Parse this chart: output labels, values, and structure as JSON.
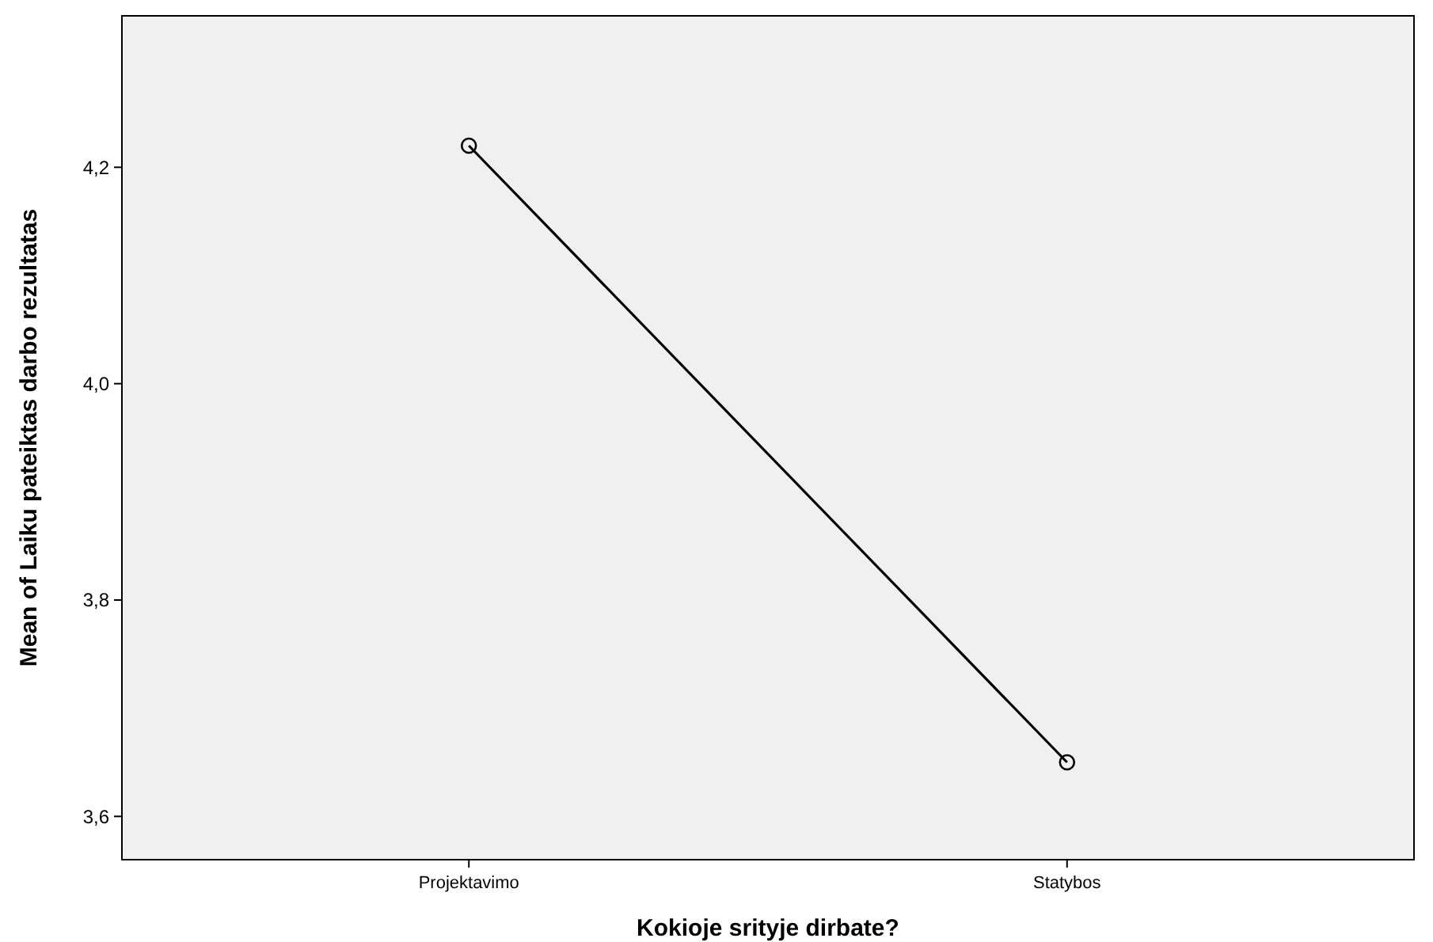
{
  "chart_data": {
    "type": "line",
    "xlabel": "Kokioje srityje dirbate?",
    "ylabel": "Mean of Laiku pateiktas darbo rezultatas",
    "categories": [
      "Projektavimo",
      "Statybos"
    ],
    "series": [
      {
        "color": "#000000",
        "values": [
          4.22,
          3.65
        ]
      }
    ],
    "ylim": [
      3.56,
      4.34
    ],
    "yticks": [
      {
        "value": 3.6,
        "label": "3,6"
      },
      {
        "value": 3.8,
        "label": "3,8"
      },
      {
        "value": 4.0,
        "label": "4,0"
      },
      {
        "value": 4.2,
        "label": "4,2"
      }
    ],
    "marker": "circle",
    "line_style": "solid",
    "grid": false
  }
}
